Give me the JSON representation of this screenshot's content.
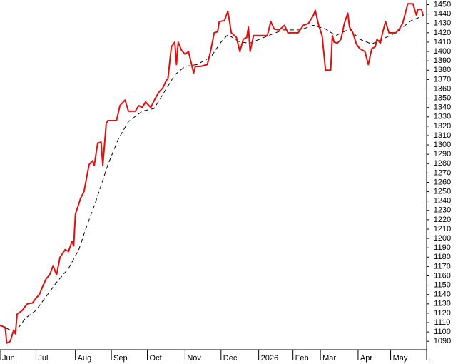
{
  "chart_data": {
    "type": "line",
    "xlim": [
      0,
      249
    ],
    "xticks": [
      {
        "value": 0,
        "label": "Jun"
      },
      {
        "value": 21,
        "label": "Jul"
      },
      {
        "value": 44,
        "label": "Aug"
      },
      {
        "value": 65,
        "label": "Sep"
      },
      {
        "value": 86,
        "label": "Oct"
      },
      {
        "value": 108,
        "label": "Nov"
      },
      {
        "value": 129,
        "label": "Dec"
      },
      {
        "value": 151,
        "label": "2026"
      },
      {
        "value": 171,
        "label": "Feb"
      },
      {
        "value": 187,
        "label": "Mar"
      },
      {
        "value": 209,
        "label": "Apr"
      },
      {
        "value": 228,
        "label": "May"
      },
      {
        "value": 249,
        "label": "."
      }
    ],
    "ylim": [
      1081,
      1455
    ],
    "yticks": [
      1090,
      1100,
      1110,
      1120,
      1130,
      1140,
      1150,
      1160,
      1170,
      1180,
      1190,
      1200,
      1210,
      1220,
      1230,
      1240,
      1250,
      1260,
      1270,
      1280,
      1290,
      1300,
      1310,
      1320,
      1330,
      1340,
      1350,
      1360,
      1370,
      1380,
      1390,
      1400,
      1410,
      1420,
      1430,
      1440,
      1450
    ],
    "series": [
      {
        "color": "#e01010",
        "style": "solid",
        "x": [
          0,
          3,
          4,
          6,
          8,
          9,
          10,
          13,
          15,
          16,
          19,
          21,
          23,
          25,
          27,
          29,
          31,
          33,
          35,
          38,
          40,
          42,
          43,
          44,
          46,
          47,
          49,
          52,
          54,
          55,
          57,
          59,
          60,
          62,
          63,
          68,
          70,
          73,
          75,
          79,
          81,
          83,
          85,
          88,
          91,
          93,
          95,
          97,
          98,
          100,
          102,
          103,
          104,
          106,
          108,
          110,
          113,
          114,
          117,
          121,
          123,
          125,
          127,
          128,
          131,
          133,
          135,
          138,
          140,
          142,
          144,
          145,
          146,
          148,
          156,
          158,
          160,
          163,
          166,
          168,
          174,
          177,
          180,
          183,
          184,
          186,
          188,
          190,
          193,
          194,
          195,
          197,
          199,
          201,
          203,
          204,
          206,
          208,
          210,
          213,
          215,
          217,
          219,
          220,
          222,
          223,
          225,
          227,
          231,
          233,
          235,
          238,
          241,
          243,
          244,
          246,
          247
        ],
        "values": [
          1107,
          1105,
          1088,
          1090,
          1102,
          1098,
          1119,
          1123,
          1128,
          1130,
          1131,
          1136,
          1140,
          1149,
          1157,
          1161,
          1171,
          1161,
          1180,
          1188,
          1186,
          1197,
          1192,
          1226,
          1237,
          1243,
          1250,
          1279,
          1283,
          1278,
          1302,
          1303,
          1278,
          1323,
          1326,
          1326,
          1342,
          1348,
          1336,
          1336,
          1342,
          1340,
          1346,
          1340,
          1351,
          1357,
          1361,
          1369,
          1371,
          1405,
          1410,
          1386,
          1410,
          1401,
          1397,
          1400,
          1377,
          1384,
          1384,
          1386,
          1401,
          1420,
          1421,
          1432,
          1433,
          1443,
          1420,
          1415,
          1400,
          1413,
          1415,
          1426,
          1400,
          1417,
          1417,
          1432,
          1424,
          1423,
          1428,
          1420,
          1420,
          1428,
          1430,
          1439,
          1444,
          1428,
          1417,
          1380,
          1380,
          1417,
          1410,
          1409,
          1413,
          1430,
          1441,
          1426,
          1420,
          1408,
          1403,
          1400,
          1386,
          1403,
          1405,
          1413,
          1409,
          1418,
          1432,
          1420,
          1420,
          1424,
          1430,
          1451,
          1451,
          1439,
          1445,
          1445,
          1438
        ]
      },
      {
        "color": "#000000",
        "style": "dashed",
        "x": [
          0,
          6,
          9,
          15,
          21,
          27,
          33,
          40,
          46,
          50,
          56,
          63,
          69,
          75,
          83,
          90,
          96,
          102,
          108,
          115,
          123,
          129,
          133,
          140,
          146,
          154,
          165,
          175,
          183,
          190,
          196,
          204,
          210,
          217,
          223,
          231,
          240,
          247
        ],
        "values": [
          1107,
          1102,
          1100,
          1115,
          1123,
          1138,
          1153,
          1168,
          1188,
          1210,
          1240,
          1279,
          1306,
          1325,
          1336,
          1339,
          1357,
          1375,
          1384,
          1386,
          1394,
          1410,
          1418,
          1410,
          1409,
          1415,
          1423,
          1423,
          1428,
          1424,
          1417,
          1424,
          1413,
          1408,
          1413,
          1420,
          1433,
          1438
        ]
      }
    ]
  }
}
